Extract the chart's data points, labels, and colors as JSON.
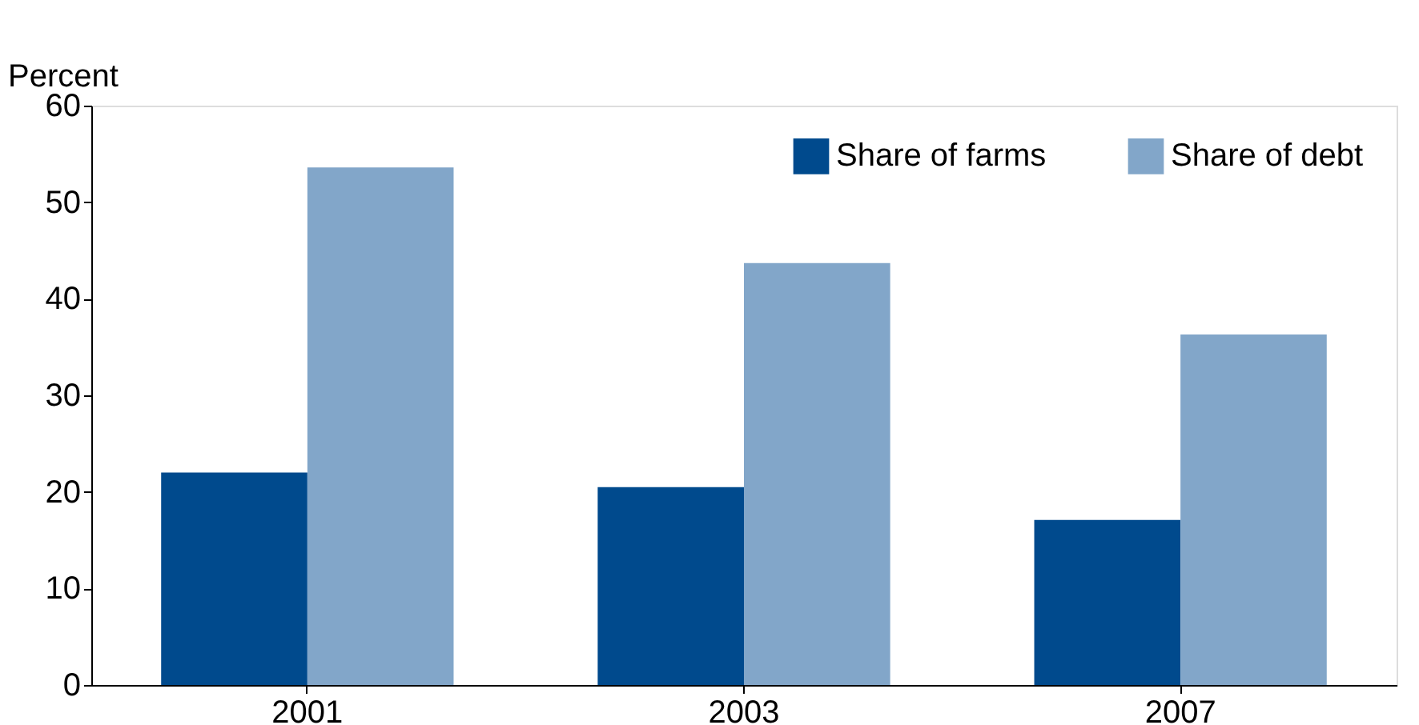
{
  "chart_data": {
    "type": "bar",
    "ylabel": "Percent",
    "categories": [
      "2001",
      "2003",
      "2007"
    ],
    "series": [
      {
        "name": "Share of farms",
        "color": "#004a8d",
        "values": [
          22,
          20.5,
          17.1
        ]
      },
      {
        "name": "Share of debt",
        "color": "#82a6c9",
        "values": [
          53.6,
          43.7,
          36.3
        ]
      }
    ],
    "ylim": [
      0,
      60
    ],
    "yticks": [
      0,
      10,
      20,
      30,
      40,
      50,
      60
    ],
    "grid": false,
    "legend": "top right"
  }
}
